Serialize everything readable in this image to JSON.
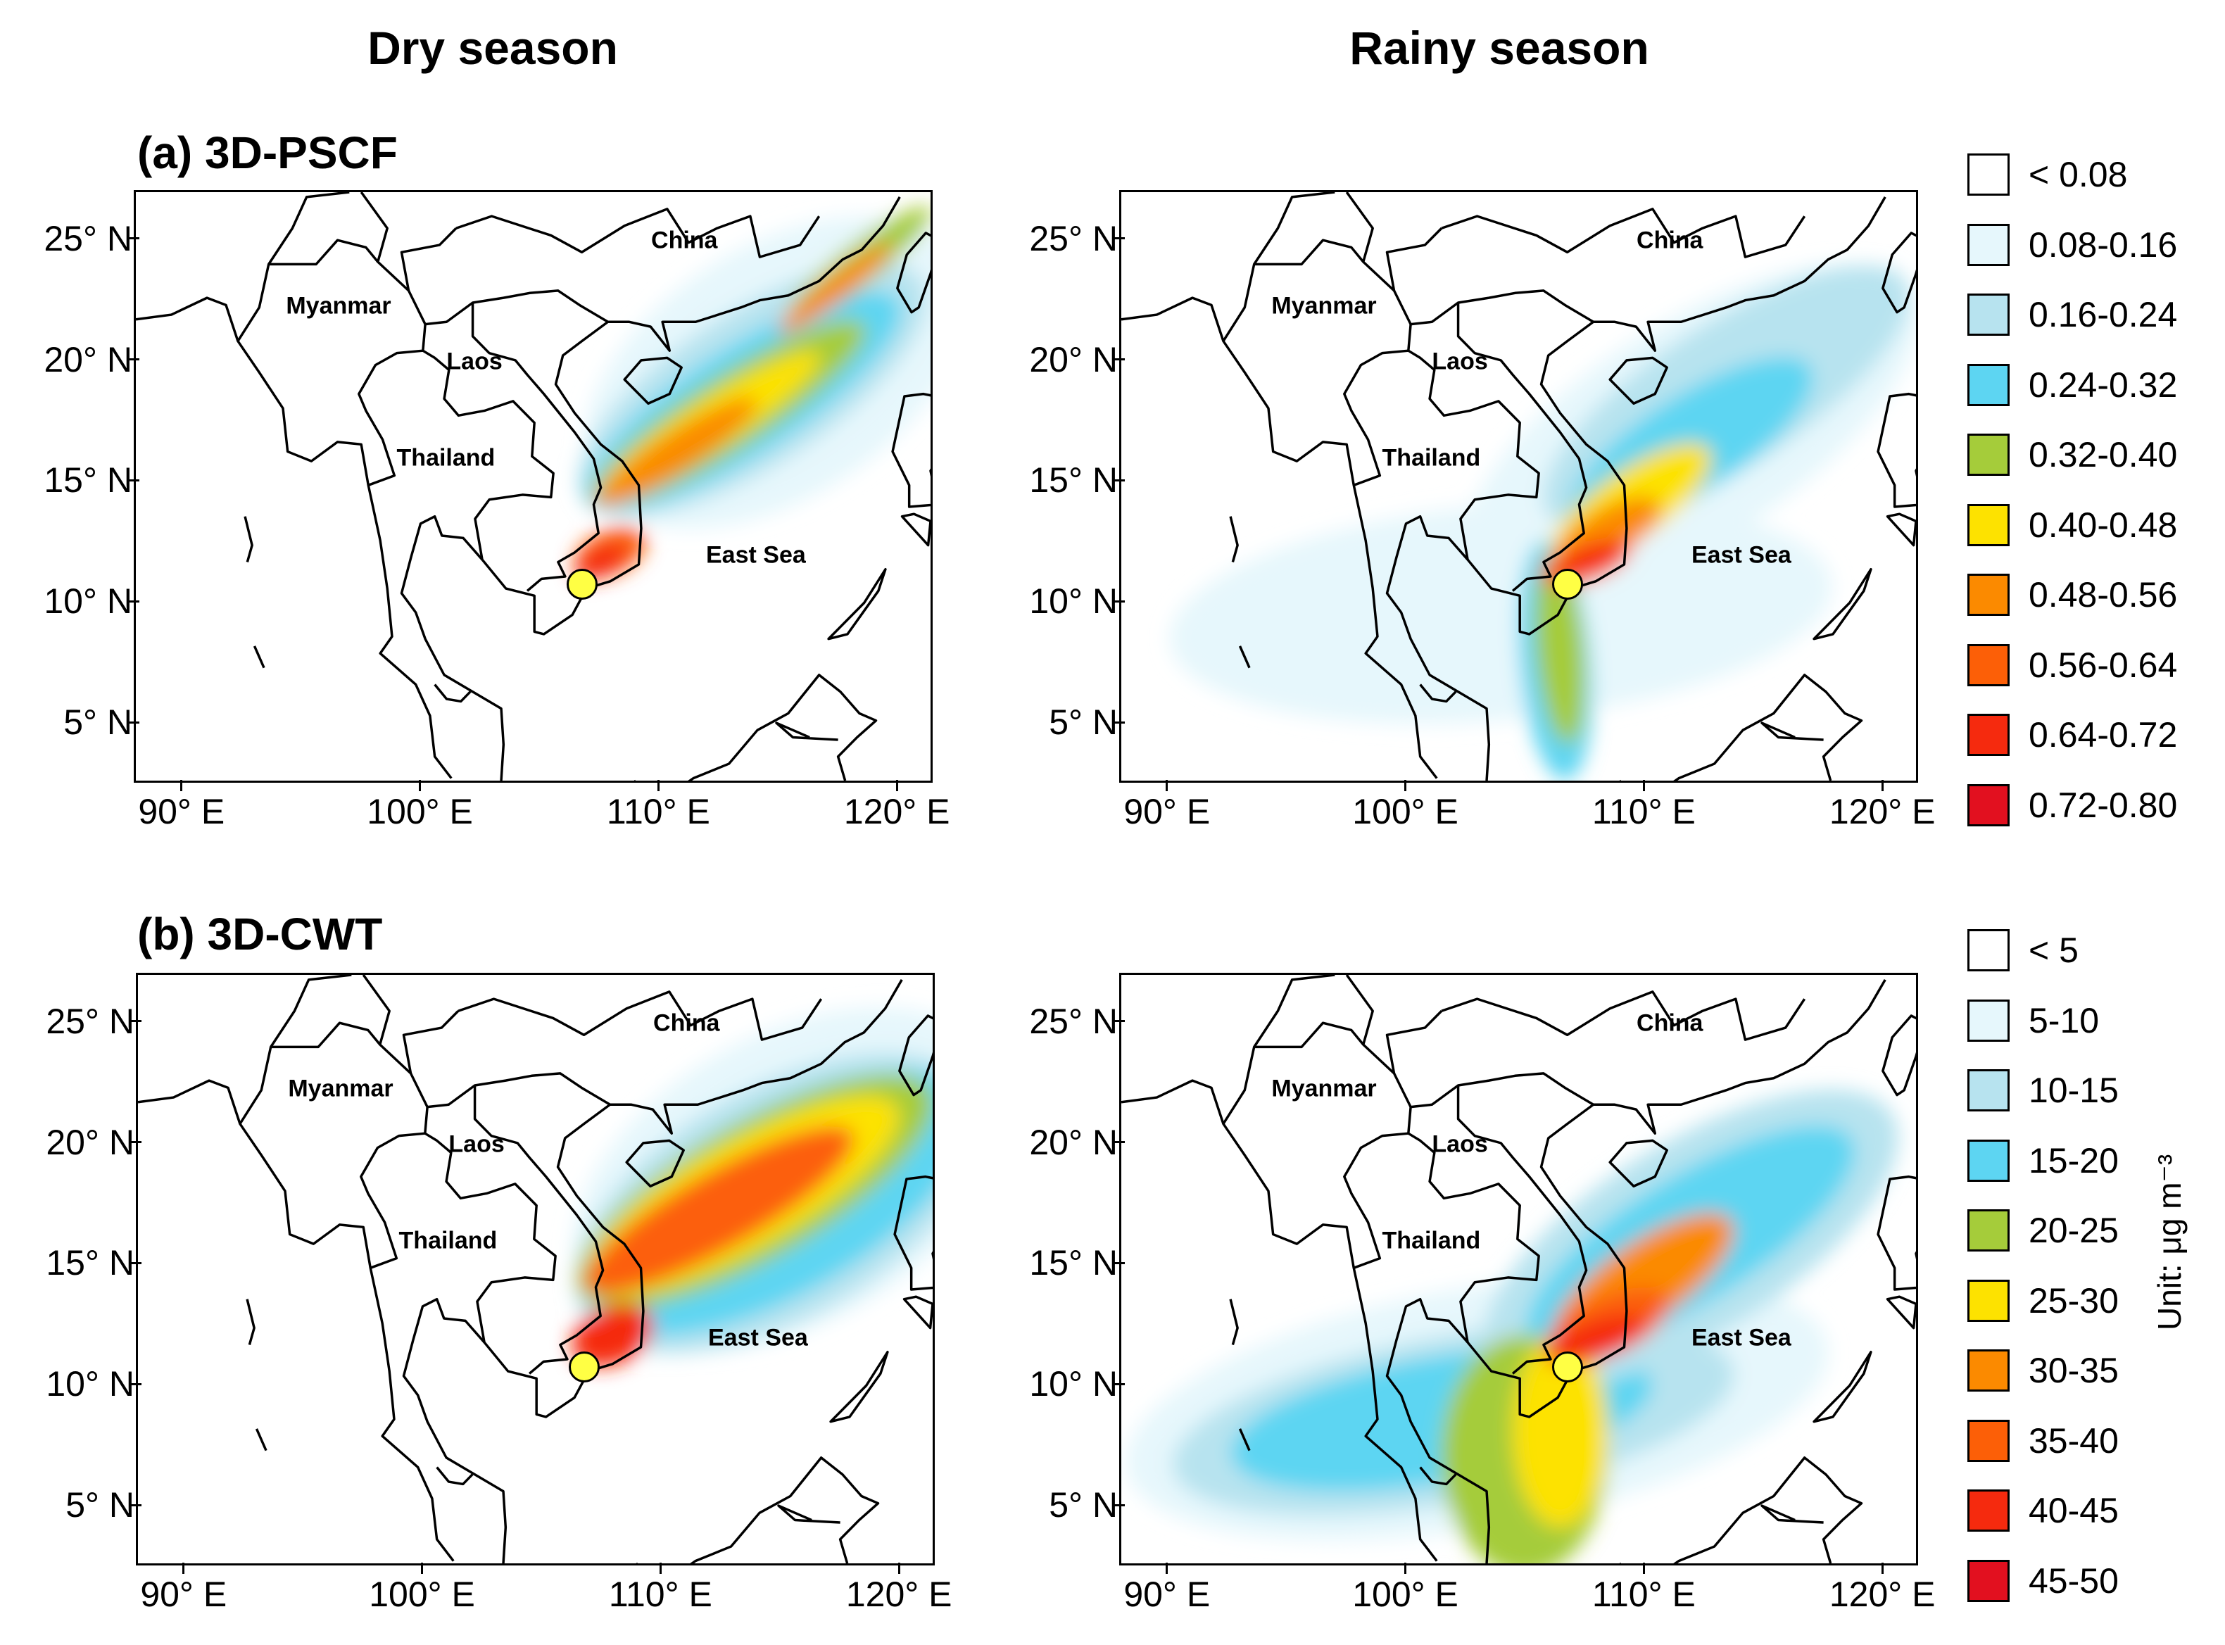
{
  "columns": {
    "left": "Dry season",
    "right": "Rainy season"
  },
  "rows": {
    "a": "(a) 3D-PSCF",
    "b": "(b) 3D-CWT"
  },
  "axes": {
    "lat_labels": [
      "25° N",
      "20° N",
      "15° N",
      "10° N",
      "5° N"
    ],
    "lon_labels": [
      "90° E",
      "100° E",
      "110° E",
      "120° E"
    ],
    "lat_values": [
      25,
      20,
      15,
      10,
      5
    ],
    "lon_values": [
      90,
      100,
      110,
      120
    ],
    "lon_range": [
      88,
      121.5
    ],
    "lat_range": [
      2.5,
      27
    ]
  },
  "places": {
    "china": "China",
    "myanmar": "Myanmar",
    "laos": "Laos",
    "thailand": "Thailand",
    "east_sea": "East Sea"
  },
  "site": {
    "lon": 106.7,
    "lat": 10.8
  },
  "legend_pscf": {
    "labels": [
      "< 0.08",
      "0.08-0.16",
      "0.16-0.24",
      "0.24-0.32",
      "0.32-0.40",
      "0.40-0.48",
      "0.48-0.56",
      "0.56-0.64",
      "0.64-0.72",
      "0.72-0.80"
    ],
    "colors": [
      "#ffffff",
      "#e6f7fc",
      "#b7e3ef",
      "#5dd5f2",
      "#a5cc3a",
      "#fde200",
      "#fb8a00",
      "#fc5f07",
      "#f52a0e",
      "#e2101f"
    ]
  },
  "legend_cwt": {
    "labels": [
      "< 5",
      "5-10",
      "10-15",
      "15-20",
      "20-25",
      "25-30",
      "30-35",
      "35-40",
      "40-45",
      "45-50"
    ],
    "colors": [
      "#ffffff",
      "#e6f7fc",
      "#b7e3ef",
      "#5dd5f2",
      "#a5cc3a",
      "#fde200",
      "#fb8a00",
      "#fc5f07",
      "#f52a0e",
      "#e2101f"
    ],
    "unit": "Unit: μg m⁻³"
  }
}
